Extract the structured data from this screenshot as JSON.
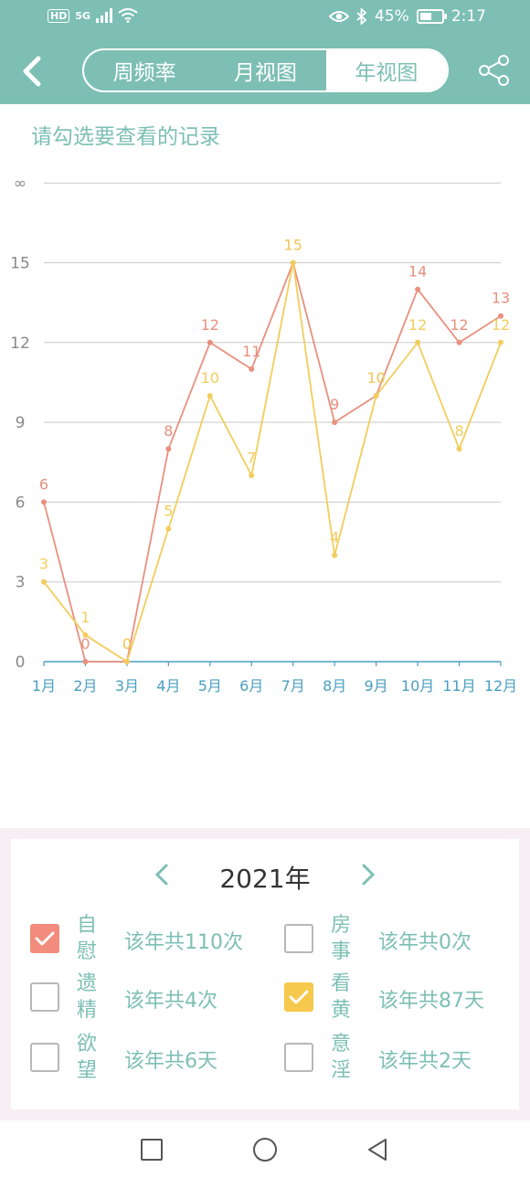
{
  "status": {
    "signal": "5G",
    "hd": "HD",
    "battery": "45%",
    "time": "2:17",
    "battery_level": 0.45
  },
  "header": {
    "tabs": [
      {
        "label": "周频率",
        "active": false
      },
      {
        "label": "月视图",
        "active": false
      },
      {
        "label": "年视图",
        "active": true
      }
    ]
  },
  "hint": "请勾选要查看的记录",
  "colors": {
    "accent": "#7dbfb4",
    "series_red": "#e8907e",
    "series_yellow": "#f2cd5c"
  },
  "chart_data": {
    "type": "line",
    "categories": [
      "1月",
      "2月",
      "3月",
      "4月",
      "5月",
      "6月",
      "7月",
      "8月",
      "9月",
      "10月",
      "11月",
      "12月"
    ],
    "y_ticks": [
      "0",
      "3",
      "6",
      "9",
      "12",
      "15",
      "∞"
    ],
    "ylim": [
      0,
      18
    ],
    "grid": true,
    "series": [
      {
        "color": "#e8907e",
        "values": [
          6,
          0,
          0,
          8,
          12,
          11,
          15,
          9,
          10,
          14,
          12,
          13
        ]
      },
      {
        "color": "#f2cd5c",
        "values": [
          3,
          1,
          0,
          5,
          10,
          7,
          15,
          4,
          10,
          12,
          8,
          12
        ]
      }
    ]
  },
  "panel": {
    "year": "2021年",
    "items": [
      {
        "name": "自慰",
        "stat": "该年共110次",
        "checked": true,
        "color": "#f28c7c"
      },
      {
        "name": "房事",
        "stat": "该年共0次",
        "checked": false
      },
      {
        "name": "遗精",
        "stat": "该年共4次",
        "checked": false
      },
      {
        "name": "看黄",
        "stat": "该年共87天",
        "checked": true,
        "color": "#f6c84c"
      },
      {
        "name": "欲望",
        "stat": "该年共6天",
        "checked": false
      },
      {
        "name": "意淫",
        "stat": "该年共2天",
        "checked": false
      }
    ]
  }
}
